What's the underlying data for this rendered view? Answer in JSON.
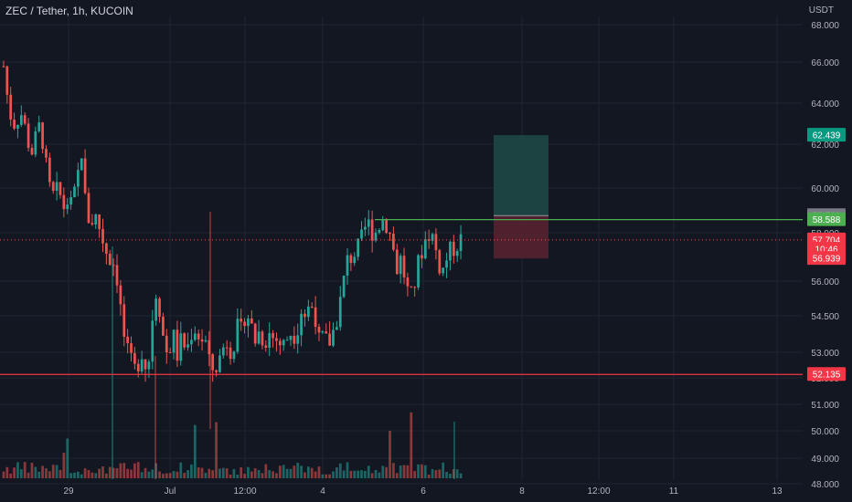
{
  "header": {
    "title": "ZEC / Tether, 1h, KUCOIN",
    "currency": "USDT"
  },
  "colors": {
    "background": "#131722",
    "grid": "#1f2433",
    "up": "#26a69a",
    "down": "#ef5350",
    "support": "#f23645",
    "resistance": "#4caf50",
    "profit_zone": "#1f4b48",
    "loss_zone": "#5b2330",
    "axis_text": "#b2b5be"
  },
  "chart_data": {
    "type": "candlestick",
    "symbol": "ZEC / Tether",
    "interval": "1h",
    "exchange": "KUCOIN",
    "y_axis": {
      "ticks": [
        "48.000",
        "49.000",
        "50.000",
        "51.000",
        "52.000",
        "53.000",
        "54.500",
        "56.000",
        "58.000",
        "60.000",
        "62.000",
        "64.000",
        "66.000",
        "68.000"
      ],
      "tick_values": [
        48.0,
        49.0,
        50.0,
        51.0,
        52.0,
        53.0,
        54.5,
        56.0,
        58.0,
        60.0,
        62.0,
        64.0,
        66.0,
        68.0
      ]
    },
    "x_axis": {
      "ticks": [
        "29",
        "Jul",
        "12:00",
        "4",
        "6",
        "8",
        "12:00",
        "11",
        "13"
      ]
    },
    "price_path": [
      {
        "t": 0,
        "p": 65.8
      },
      {
        "t": 0.01,
        "p": 64.0
      },
      {
        "t": 0.02,
        "p": 62.9
      },
      {
        "t": 0.04,
        "p": 63.5
      },
      {
        "t": 0.06,
        "p": 61.5
      },
      {
        "t": 0.07,
        "p": 62.3
      },
      {
        "t": 0.08,
        "p": 63.0
      },
      {
        "t": 0.09,
        "p": 61.4
      },
      {
        "t": 0.1,
        "p": 60.0
      },
      {
        "t": 0.11,
        "p": 59.6
      },
      {
        "t": 0.12,
        "p": 60.0
      },
      {
        "t": 0.13,
        "p": 59.1
      },
      {
        "t": 0.14,
        "p": 59.4
      },
      {
        "t": 0.15,
        "p": 59.2
      },
      {
        "t": 0.16,
        "p": 60.2
      },
      {
        "t": 0.17,
        "p": 61.8
      },
      {
        "t": 0.18,
        "p": 59.0
      },
      {
        "t": 0.19,
        "p": 58.4
      },
      {
        "t": 0.2,
        "p": 58.8
      },
      {
        "t": 0.21,
        "p": 58.2
      },
      {
        "t": 0.22,
        "p": 57.5
      },
      {
        "t": 0.23,
        "p": 57.0
      },
      {
        "t": 0.24,
        "p": 56.8
      },
      {
        "t": 0.25,
        "p": 56.0
      },
      {
        "t": 0.26,
        "p": 54.0
      },
      {
        "t": 0.27,
        "p": 53.0
      },
      {
        "t": 0.28,
        "p": 52.5
      },
      {
        "t": 0.29,
        "p": 52.2
      },
      {
        "t": 0.3,
        "p": 53.2
      },
      {
        "t": 0.31,
        "p": 52.5
      },
      {
        "t": 0.32,
        "p": 52.8
      },
      {
        "t": 0.33,
        "p": 55.8
      },
      {
        "t": 0.34,
        "p": 55.0
      },
      {
        "t": 0.35,
        "p": 53.5
      },
      {
        "t": 0.36,
        "p": 52.8
      },
      {
        "t": 0.37,
        "p": 53.8
      },
      {
        "t": 0.38,
        "p": 52.9
      },
      {
        "t": 0.39,
        "p": 53.6
      },
      {
        "t": 0.4,
        "p": 53.0
      },
      {
        "t": 0.41,
        "p": 53.8
      },
      {
        "t": 0.42,
        "p": 54.0
      },
      {
        "t": 0.43,
        "p": 53.5
      },
      {
        "t": 0.44,
        "p": 53.6
      },
      {
        "t": 0.45,
        "p": 52.5
      },
      {
        "t": 0.46,
        "p": 52.3
      },
      {
        "t": 0.47,
        "p": 52.6
      },
      {
        "t": 0.48,
        "p": 53.2
      },
      {
        "t": 0.49,
        "p": 53.5
      },
      {
        "t": 0.5,
        "p": 53.0
      },
      {
        "t": 0.51,
        "p": 54.0
      },
      {
        "t": 0.52,
        "p": 53.8
      },
      {
        "t": 0.53,
        "p": 54.8
      },
      {
        "t": 0.54,
        "p": 54.2
      },
      {
        "t": 0.55,
        "p": 53.5
      },
      {
        "t": 0.56,
        "p": 53.9
      },
      {
        "t": 0.57,
        "p": 53.4
      },
      {
        "t": 0.58,
        "p": 53.8
      },
      {
        "t": 0.59,
        "p": 53.6
      },
      {
        "t": 0.6,
        "p": 53.5
      },
      {
        "t": 0.61,
        "p": 53.2
      },
      {
        "t": 0.62,
        "p": 53.6
      },
      {
        "t": 0.63,
        "p": 53.9
      },
      {
        "t": 0.64,
        "p": 53.7
      },
      {
        "t": 0.65,
        "p": 54.8
      },
      {
        "t": 0.66,
        "p": 54.5
      },
      {
        "t": 0.67,
        "p": 55.0
      },
      {
        "t": 0.68,
        "p": 54.8
      },
      {
        "t": 0.69,
        "p": 53.4
      },
      {
        "t": 0.7,
        "p": 53.6
      },
      {
        "t": 0.71,
        "p": 53.3
      },
      {
        "t": 0.72,
        "p": 53.8
      },
      {
        "t": 0.73,
        "p": 54.5
      },
      {
        "t": 0.74,
        "p": 55.5
      },
      {
        "t": 0.75,
        "p": 56.8
      },
      {
        "t": 0.76,
        "p": 57.0
      },
      {
        "t": 0.77,
        "p": 57.2
      },
      {
        "t": 0.78,
        "p": 57.5
      },
      {
        "t": 0.79,
        "p": 58.2
      },
      {
        "t": 0.8,
        "p": 58.4
      },
      {
        "t": 0.81,
        "p": 57.9
      },
      {
        "t": 0.82,
        "p": 58.3
      },
      {
        "t": 0.83,
        "p": 58.6
      },
      {
        "t": 0.84,
        "p": 58.3
      },
      {
        "t": 0.85,
        "p": 57.6
      },
      {
        "t": 0.86,
        "p": 56.5
      },
      {
        "t": 0.87,
        "p": 57.0
      },
      {
        "t": 0.88,
        "p": 55.8
      },
      {
        "t": 0.89,
        "p": 55.2
      },
      {
        "t": 0.9,
        "p": 56.0
      },
      {
        "t": 0.91,
        "p": 57.0
      },
      {
        "t": 0.92,
        "p": 57.6
      },
      {
        "t": 0.93,
        "p": 58.0
      },
      {
        "t": 0.94,
        "p": 57.8
      },
      {
        "t": 0.95,
        "p": 56.8
      },
      {
        "t": 0.96,
        "p": 56.4
      },
      {
        "t": 0.97,
        "p": 57.0
      },
      {
        "t": 0.98,
        "p": 57.3
      },
      {
        "t": 0.99,
        "p": 57.5
      },
      {
        "t": 1.0,
        "p": 57.7
      }
    ],
    "horizontal_lines": [
      {
        "name": "support",
        "price": 52.135,
        "color": "#f23645"
      },
      {
        "name": "resistance",
        "price": 58.588,
        "color": "#4caf50"
      }
    ],
    "position_tool": {
      "entry": 58.766,
      "target": 62.439,
      "stop": 56.939
    },
    "price_labels": [
      {
        "text": "62.439",
        "price": 62.439,
        "bg": "#089981",
        "fg": "#ffffff"
      },
      {
        "text": "58.766",
        "price": 58.766,
        "bg": "#787b86",
        "fg": "#ffffff"
      },
      {
        "text": "58.588",
        "price": 58.588,
        "bg": "#4caf50",
        "fg": "#ffffff"
      },
      {
        "text": "57.704",
        "price": 57.704,
        "bg": "#f23645",
        "fg": "#ffffff"
      },
      {
        "text": "10:46",
        "price": 57.32,
        "bg": "#f23645",
        "fg": "#ffffff"
      },
      {
        "text": "56.939",
        "price": 56.939,
        "bg": "#f23645",
        "fg": "#ffffff"
      },
      {
        "text": "52.135",
        "price": 52.135,
        "bg": "#f23645",
        "fg": "#ffffff"
      }
    ],
    "last_price": 57.704
  }
}
